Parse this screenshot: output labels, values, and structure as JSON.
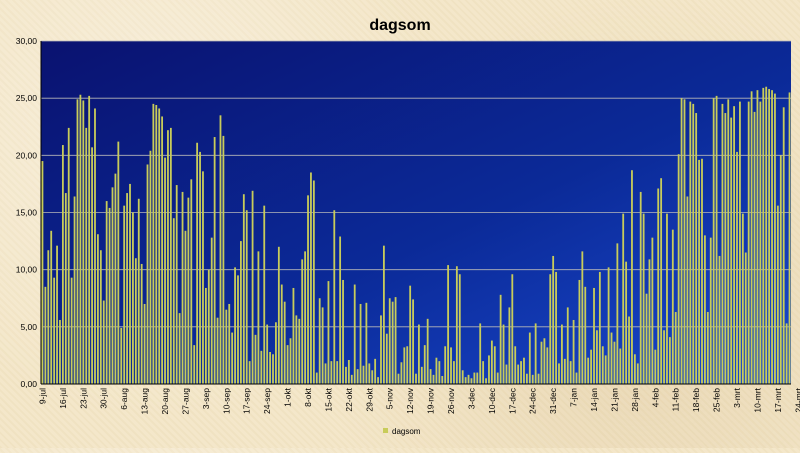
{
  "chart_data": {
    "type": "bar",
    "title": "dagsom",
    "xlabel": "",
    "ylabel": "",
    "ylim": [
      0,
      30
    ],
    "yticks": [
      "0,00",
      "5,00",
      "10,00",
      "15,00",
      "20,00",
      "25,00",
      "30,00"
    ],
    "grid": true,
    "legend": {
      "entries": [
        "dagsom"
      ],
      "placement": "bottom"
    },
    "x_tick_labels": [
      "9-jul",
      "16-jul",
      "23-jul",
      "30-jul",
      "6-aug",
      "13-aug",
      "20-aug",
      "27-aug",
      "3-sep",
      "10-sep",
      "17-sep",
      "24-sep",
      "1-okt",
      "8-okt",
      "15-okt",
      "22-okt",
      "29-okt",
      "5-nov",
      "12-nov",
      "19-nov",
      "26-nov",
      "3-dec",
      "10-dec",
      "17-dec",
      "24-dec",
      "31-dec",
      "7-jan",
      "14-jan",
      "21-jan",
      "28-jan",
      "4-feb",
      "11-feb",
      "18-feb",
      "25-feb",
      "3-mrt",
      "10-mrt",
      "17-mrt",
      "24-mrt",
      "31-mrt",
      "7-apr",
      "14-apr",
      "21-apr",
      "28-apr"
    ],
    "series": [
      {
        "name": "dagsom",
        "color": "#c8cc5a",
        "values": [
          19.5,
          8.5,
          11.7,
          13.4,
          9.3,
          12.1,
          5.6,
          20.9,
          16.7,
          22.4,
          9.3,
          16.4,
          24.9,
          25.3,
          24.8,
          22.4,
          25.2,
          20.7,
          24.1,
          13.1,
          11.7,
          7.3,
          16.0,
          15.4,
          17.2,
          18.4,
          21.2,
          4.9,
          15.6,
          16.7,
          17.5,
          15.0,
          11.0,
          16.2,
          10.5,
          7.0,
          19.2,
          20.4,
          24.5,
          24.4,
          24.1,
          23.4,
          19.8,
          22.2,
          22.4,
          14.5,
          17.4,
          6.2,
          16.8,
          13.4,
          16.3,
          17.9,
          3.4,
          21.1,
          20.3,
          18.6,
          8.4,
          10.0,
          12.8,
          21.6,
          5.8,
          23.5,
          21.7,
          6.5,
          7.0,
          4.5,
          10.2,
          9.5,
          12.5,
          16.6,
          15.2,
          2.0,
          16.9,
          4.3,
          11.6,
          2.9,
          15.6,
          5.2,
          2.8,
          2.6,
          5.4,
          12.0,
          8.7,
          7.2,
          3.4,
          4.0,
          8.4,
          6.0,
          5.7,
          10.9,
          11.6,
          16.5,
          18.5,
          17.8,
          1.0,
          7.5,
          6.7,
          1.8,
          9.0,
          2.0,
          15.2,
          2.0,
          12.9,
          9.1,
          1.5,
          2.1,
          0.8,
          8.7,
          1.3,
          7.0,
          1.6,
          7.1,
          1.8,
          1.2,
          2.2,
          0.6,
          6.0,
          12.1,
          4.4,
          7.5,
          7.2,
          7.6,
          0.9,
          1.9,
          3.2,
          3.3,
          8.6,
          7.4,
          0.9,
          5.2,
          1.5,
          3.4,
          5.7,
          1.3,
          0.8,
          2.3,
          2.0,
          0.7,
          3.3,
          10.4,
          3.2,
          2.0,
          10.3,
          9.6,
          1.2,
          0.6,
          0.8,
          0.5,
          1.0,
          1.0,
          5.3,
          2.0,
          0.5,
          2.5,
          3.8,
          3.3,
          1.0,
          7.8,
          5.2,
          1.7,
          6.7,
          9.6,
          3.3,
          1.7,
          2.0,
          2.3,
          0.9,
          4.5,
          0.8,
          5.3,
          0.9,
          3.7,
          4.0,
          3.2,
          9.6,
          11.2,
          9.8,
          1.8,
          5.2,
          2.2,
          6.7,
          2.0,
          5.6,
          1.0,
          9.1,
          11.6,
          8.5,
          2.3,
          3.0,
          8.4,
          4.7,
          9.8,
          3.3,
          2.5,
          10.2,
          4.5,
          3.7,
          12.3,
          3.1,
          14.9,
          10.7,
          5.9,
          18.7,
          2.6,
          1.8,
          16.8,
          14.9,
          7.9,
          10.9,
          12.8,
          3.0,
          17.1,
          18.0,
          4.7,
          14.9,
          4.1,
          13.5,
          6.3,
          20.1,
          25.0,
          24.9,
          16.4,
          24.7,
          24.5,
          23.7,
          19.6,
          19.7,
          13.0,
          6.3,
          12.8,
          25.0,
          25.2,
          11.2,
          24.5,
          23.7,
          24.9,
          23.3,
          24.3,
          20.3,
          24.7,
          14.9,
          11.5,
          24.7,
          25.6,
          23.8,
          25.7,
          24.7,
          25.9,
          26.0,
          25.8,
          25.7,
          25.4,
          15.6,
          20.0,
          24.2,
          5.3,
          25.5
        ]
      }
    ]
  }
}
